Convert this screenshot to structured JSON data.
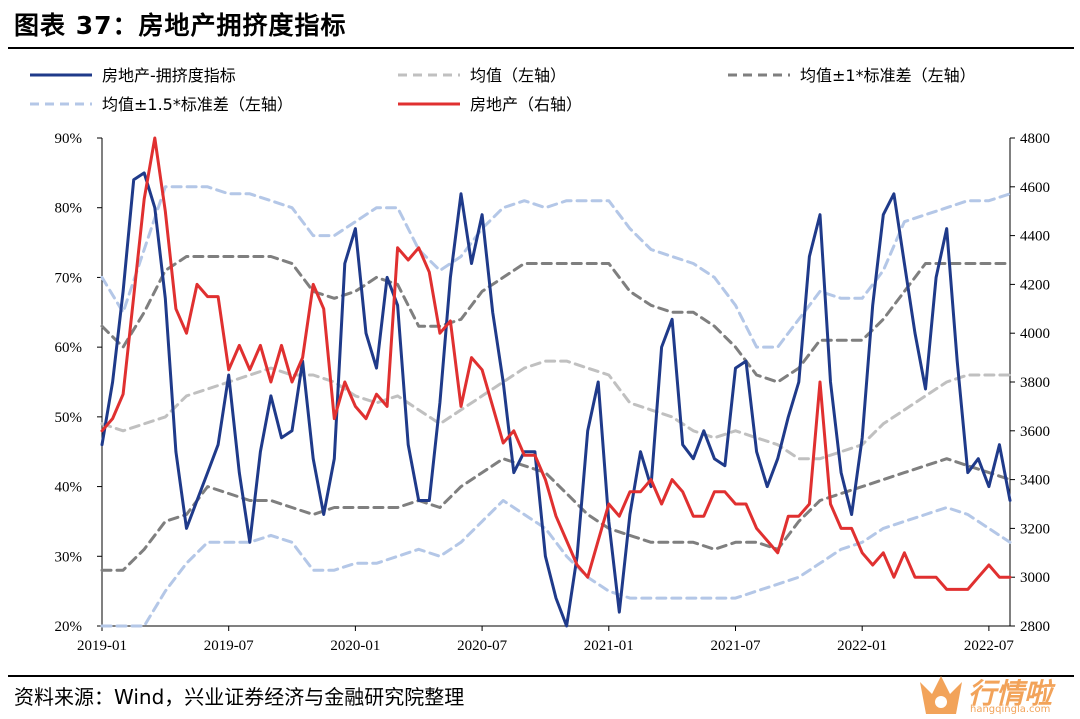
{
  "header": {
    "title": "图表 37：房地产拥挤度指标"
  },
  "footer": {
    "source": "资料来源：Wind，兴业证券经济与金融研究院整理"
  },
  "watermark": {
    "text": "行情啦",
    "url": "hangqingla.com",
    "colors": {
      "logo": "#f2a35a"
    }
  },
  "chart_data": {
    "type": "line",
    "title": "房地产拥挤度指标",
    "x_ticks": [
      "2019-01",
      "2019-07",
      "2020-01",
      "2020-07",
      "2021-01",
      "2021-07",
      "2022-01",
      "2022-07"
    ],
    "x_range": [
      0,
      43
    ],
    "y_left": {
      "range": [
        20,
        90
      ],
      "ticks": [
        "20%",
        "30%",
        "40%",
        "50%",
        "60%",
        "70%",
        "80%",
        "90%"
      ],
      "tick_values": [
        20,
        30,
        40,
        50,
        60,
        70,
        80,
        90
      ]
    },
    "y_right": {
      "range": [
        2800,
        4800
      ],
      "ticks": [
        "2800",
        "3000",
        "3200",
        "3400",
        "3600",
        "3800",
        "4000",
        "4200",
        "4400",
        "4600",
        "4800"
      ],
      "tick_values": [
        2800,
        3000,
        3200,
        3400,
        3600,
        3800,
        4000,
        4200,
        4400,
        4600,
        4800
      ]
    },
    "legend": [
      {
        "label": "房地产-拥挤度指标",
        "color": "#1f3a8a",
        "dash": "solid"
      },
      {
        "label": "均值（左轴）",
        "color": "#c0c0c0",
        "dash": "dashed"
      },
      {
        "label": "均值±1*标准差（左轴）",
        "color": "#7f7f7f",
        "dash": "dashed"
      },
      {
        "label": "均值±1.5*标准差（左轴）",
        "color": "#b4c7e7",
        "dash": "dashed"
      },
      {
        "label": "房地产（右轴）",
        "color": "#e03030",
        "dash": "solid"
      }
    ],
    "series": [
      {
        "name": "房地产-拥挤度指标",
        "axis": "left",
        "color": "#1f3a8a",
        "x": [
          0,
          0.5,
          1,
          1.5,
          2,
          2.5,
          3,
          3.5,
          4,
          4.5,
          5,
          5.5,
          6,
          6.5,
          7,
          7.5,
          8,
          8.5,
          9,
          9.5,
          10,
          10.5,
          11,
          11.5,
          12,
          12.5,
          13,
          13.5,
          14,
          14.5,
          15,
          15.5,
          16,
          16.5,
          17,
          17.5,
          18,
          18.5,
          19,
          19.5,
          20,
          20.5,
          21,
          21.5,
          22,
          22.5,
          23,
          23.5,
          24,
          24.5,
          25,
          25.5,
          26,
          26.5,
          27,
          27.5,
          28,
          28.5,
          29,
          29.5,
          30,
          30.5,
          31,
          31.5,
          32,
          32.5,
          33,
          33.5,
          34,
          34.5,
          35,
          35.5,
          36,
          36.5,
          37,
          37.5,
          38,
          38.5,
          39,
          39.5,
          40,
          40.5,
          41,
          41.5,
          42,
          42.5,
          43
        ],
        "values": [
          46,
          55,
          68,
          84,
          85,
          80,
          67,
          45,
          34,
          38,
          42,
          46,
          56,
          42,
          32,
          45,
          53,
          47,
          48,
          58,
          44,
          36,
          44,
          72,
          77,
          62,
          57,
          70,
          66,
          46,
          38,
          38,
          52,
          70,
          82,
          72,
          79,
          65,
          55,
          42,
          45,
          45,
          30,
          24,
          20,
          30,
          48,
          55,
          35,
          22,
          36,
          45,
          40,
          60,
          64,
          46,
          44,
          48,
          44,
          43,
          57,
          58,
          45,
          40,
          44,
          50,
          55,
          73,
          79,
          55,
          42,
          36,
          47,
          66,
          79,
          82,
          72,
          62,
          54,
          70,
          77,
          58,
          42,
          44,
          40,
          46,
          38
        ]
      },
      {
        "name": "均值（左轴）",
        "axis": "left",
        "color": "#c0c0c0",
        "x": [
          0,
          1,
          2,
          3,
          4,
          5,
          6,
          7,
          8,
          9,
          10,
          11,
          12,
          13,
          14,
          15,
          16,
          17,
          18,
          19,
          20,
          21,
          22,
          23,
          24,
          25,
          26,
          27,
          28,
          29,
          30,
          31,
          32,
          33,
          34,
          35,
          36,
          37,
          38,
          39,
          40,
          41,
          42,
          43
        ],
        "values": [
          49,
          48,
          49,
          50,
          53,
          54,
          55,
          56,
          57,
          56,
          56,
          55,
          53,
          52,
          53,
          51,
          49,
          51,
          53,
          55,
          57,
          58,
          58,
          57,
          56,
          52,
          51,
          50,
          48,
          47,
          48,
          47,
          46,
          44,
          44,
          45,
          46,
          49,
          51,
          53,
          55,
          56,
          56,
          56
        ]
      },
      {
        "name": "均值+1*标准差（左轴）",
        "axis": "left",
        "color": "#7f7f7f",
        "x": [
          0,
          1,
          2,
          3,
          4,
          5,
          6,
          7,
          8,
          9,
          10,
          11,
          12,
          13,
          14,
          15,
          16,
          17,
          18,
          19,
          20,
          21,
          22,
          23,
          24,
          25,
          26,
          27,
          28,
          29,
          30,
          31,
          32,
          33,
          34,
          35,
          36,
          37,
          38,
          39,
          40,
          41,
          42,
          43
        ],
        "values": [
          63,
          60,
          65,
          71,
          73,
          73,
          73,
          73,
          73,
          72,
          68,
          67,
          68,
          70,
          69,
          63,
          63,
          64,
          68,
          70,
          72,
          72,
          72,
          72,
          72,
          68,
          66,
          65,
          65,
          63,
          60,
          56,
          55,
          57,
          61,
          61,
          61,
          64,
          68,
          72,
          72,
          72,
          72,
          72
        ]
      },
      {
        "name": "均值-1*标准差（左轴）",
        "axis": "left",
        "color": "#7f7f7f",
        "x": [
          0,
          1,
          2,
          3,
          4,
          5,
          6,
          7,
          8,
          9,
          10,
          11,
          12,
          13,
          14,
          15,
          16,
          17,
          18,
          19,
          20,
          21,
          22,
          23,
          24,
          25,
          26,
          27,
          28,
          29,
          30,
          31,
          32,
          33,
          34,
          35,
          36,
          37,
          38,
          39,
          40,
          41,
          42,
          43
        ],
        "values": [
          28,
          28,
          31,
          35,
          36,
          40,
          39,
          38,
          38,
          37,
          36,
          37,
          37,
          37,
          37,
          38,
          37,
          40,
          42,
          44,
          43,
          42,
          39,
          36,
          34,
          33,
          32,
          32,
          32,
          31,
          32,
          32,
          31,
          35,
          38,
          39,
          40,
          41,
          42,
          43,
          44,
          43,
          42,
          41
        ]
      },
      {
        "name": "均值+1.5*标准差（左轴）",
        "axis": "left",
        "color": "#b4c7e7",
        "x": [
          0,
          1,
          2,
          3,
          4,
          5,
          6,
          7,
          8,
          9,
          10,
          11,
          12,
          13,
          14,
          15,
          16,
          17,
          18,
          19,
          20,
          21,
          22,
          23,
          24,
          25,
          26,
          27,
          28,
          29,
          30,
          31,
          32,
          33,
          34,
          35,
          36,
          37,
          38,
          39,
          40,
          41,
          42,
          43
        ],
        "values": [
          70,
          65,
          74,
          83,
          83,
          83,
          82,
          82,
          81,
          80,
          76,
          76,
          78,
          80,
          80,
          74,
          71,
          73,
          77,
          80,
          81,
          80,
          81,
          81,
          81,
          77,
          74,
          73,
          72,
          70,
          66,
          60,
          60,
          64,
          68,
          67,
          67,
          71,
          78,
          79,
          80,
          81,
          81,
          82
        ]
      },
      {
        "name": "均值-1.5*标准差（左轴）",
        "axis": "left",
        "color": "#b4c7e7",
        "x": [
          0,
          1,
          2,
          3,
          4,
          5,
          6,
          7,
          8,
          9,
          10,
          11,
          12,
          13,
          14,
          15,
          16,
          17,
          18,
          19,
          20,
          21,
          22,
          23,
          24,
          25,
          26,
          27,
          28,
          29,
          30,
          31,
          32,
          33,
          34,
          35,
          36,
          37,
          38,
          39,
          40,
          41,
          42,
          43
        ],
        "values": [
          20,
          20,
          20,
          25,
          29,
          32,
          32,
          32,
          33,
          32,
          28,
          28,
          29,
          29,
          30,
          31,
          30,
          32,
          35,
          38,
          36,
          34,
          30,
          27,
          25,
          24,
          24,
          24,
          24,
          24,
          24,
          25,
          26,
          27,
          29,
          31,
          32,
          34,
          35,
          36,
          37,
          36,
          34,
          32
        ]
      },
      {
        "name": "房地产（右轴）",
        "axis": "right",
        "color": "#e03030",
        "x": [
          0,
          0.5,
          1,
          1.5,
          2,
          2.5,
          3,
          3.5,
          4,
          4.5,
          5,
          5.5,
          6,
          6.5,
          7,
          7.5,
          8,
          8.5,
          9,
          9.5,
          10,
          10.5,
          11,
          11.5,
          12,
          12.5,
          13,
          13.5,
          14,
          14.5,
          15,
          15.5,
          16,
          16.5,
          17,
          17.5,
          18,
          18.5,
          19,
          19.5,
          20,
          20.5,
          21,
          21.5,
          22,
          22.5,
          23,
          23.5,
          24,
          24.5,
          25,
          25.5,
          26,
          26.5,
          27,
          27.5,
          28,
          28.5,
          29,
          29.5,
          30,
          30.5,
          31,
          31.5,
          32,
          32.5,
          33,
          33.5,
          34,
          34.5,
          35,
          35.5,
          36,
          36.5,
          37,
          37.5,
          38,
          38.5,
          39,
          39.5,
          40,
          40.5,
          41,
          41.5,
          42,
          42.5,
          43
        ],
        "values": [
          3600,
          3650,
          3750,
          4150,
          4550,
          4800,
          4500,
          4100,
          4000,
          4200,
          4150,
          4150,
          3850,
          3950,
          3850,
          3950,
          3800,
          3950,
          3800,
          3900,
          4200,
          4100,
          3650,
          3800,
          3700,
          3650,
          3750,
          3700,
          4350,
          4300,
          4350,
          4250,
          4000,
          4050,
          3700,
          3900,
          3850,
          3700,
          3550,
          3600,
          3500,
          3500,
          3400,
          3250,
          3150,
          3050,
          3000,
          3150,
          3300,
          3250,
          3350,
          3350,
          3400,
          3300,
          3400,
          3350,
          3250,
          3250,
          3350,
          3350,
          3300,
          3300,
          3200,
          3150,
          3100,
          3250,
          3250,
          3300,
          3800,
          3300,
          3200,
          3200,
          3100,
          3050,
          3100,
          3000,
          3100,
          3000,
          3000,
          3000,
          2950,
          2950,
          2950,
          3000,
          3050,
          3000,
          3000
        ]
      }
    ]
  }
}
